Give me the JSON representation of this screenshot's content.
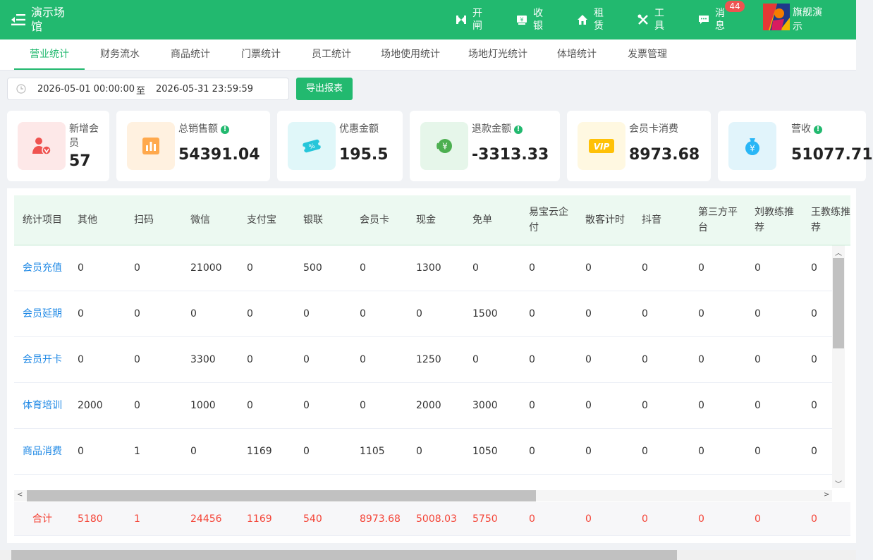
{
  "topbar": {
    "title": "演示场馆",
    "items": [
      {
        "label": "开闸",
        "icon": "gate-icon"
      },
      {
        "label": "收银",
        "icon": "cashier-icon"
      },
      {
        "label": "租赁",
        "icon": "home-icon"
      },
      {
        "label": "工具",
        "icon": "tools-icon"
      },
      {
        "label": "消息",
        "icon": "message-icon"
      }
    ],
    "badge": "44",
    "user": "旗舰演示",
    "brand_color": "#22b96f"
  },
  "tabs": [
    "营业统计",
    "财务流水",
    "商品统计",
    "门票统计",
    "员工统计",
    "场地使用统计",
    "场地灯光统计",
    "体培统计",
    "发票管理"
  ],
  "active_tab": "营业统计",
  "filter": {
    "start": "2026-05-01 00:00:00",
    "separator": "至",
    "end": "2026-05-31 23:59:59",
    "export_label": "导出报表"
  },
  "cards": [
    {
      "label": "新增会员",
      "value": "57",
      "info": false,
      "icon": "new-member-icon"
    },
    {
      "label": "总销售额",
      "value": "54391.04",
      "info": true,
      "icon": "sales-chart-icon"
    },
    {
      "label": "优惠金额",
      "value": "195.5",
      "info": false,
      "icon": "discount-coupon-icon"
    },
    {
      "label": "退款金额",
      "value": "-3313.33",
      "info": true,
      "icon": "refund-yen-icon"
    },
    {
      "label": "会员卡消费",
      "value": "8973.68",
      "info": false,
      "icon": "vip-card-icon"
    },
    {
      "label": "营收",
      "value": "51077.71",
      "info": true,
      "icon": "money-bag-icon"
    }
  ],
  "table": {
    "columns": [
      "统计项目",
      "其他",
      "扫码",
      "微信",
      "支付宝",
      "银联",
      "会员卡",
      "现金",
      "免单",
      "易宝云企付",
      "散客计时",
      "抖音",
      "第三方平台",
      "刘教练推荐",
      "王教练推荐"
    ],
    "rows": [
      [
        "会员充值",
        "0",
        "0",
        "21000",
        "0",
        "500",
        "0",
        "1300",
        "0",
        "0",
        "0",
        "0",
        "0",
        "0",
        "0"
      ],
      [
        "会员延期",
        "0",
        "0",
        "0",
        "0",
        "0",
        "0",
        "0",
        "1500",
        "0",
        "0",
        "0",
        "0",
        "0",
        "0"
      ],
      [
        "会员开卡",
        "0",
        "0",
        "3300",
        "0",
        "0",
        "0",
        "1250",
        "0",
        "0",
        "0",
        "0",
        "0",
        "0",
        "0"
      ],
      [
        "体育培训",
        "2000",
        "0",
        "1000",
        "0",
        "0",
        "0",
        "2000",
        "3000",
        "0",
        "0",
        "0",
        "0",
        "0",
        "0"
      ],
      [
        "商品消费",
        "0",
        "1",
        "0",
        "1169",
        "0",
        "1105",
        "0",
        "1050",
        "0",
        "0",
        "0",
        "0",
        "0",
        "0"
      ]
    ],
    "totals": [
      "合计",
      "5180",
      "1",
      "24456",
      "1169",
      "540",
      "8973.68",
      "5008.03",
      "5750",
      "0",
      "0",
      "0",
      "0",
      "0",
      "0"
    ]
  }
}
